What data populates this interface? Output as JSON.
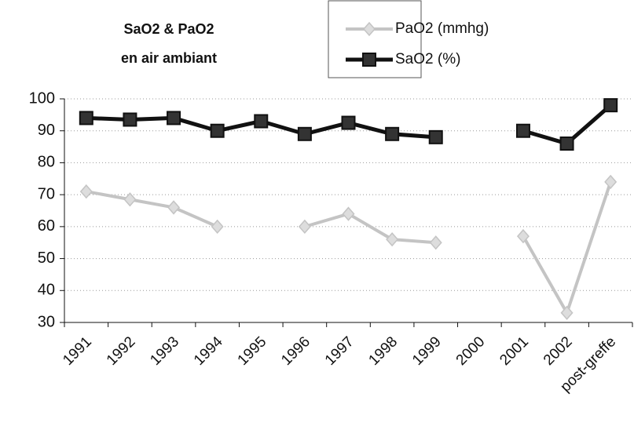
{
  "chart_data": {
    "type": "line",
    "title": "SaO2 & PaO2",
    "subtitle": "en air ambiant",
    "categories": [
      "1991",
      "1992",
      "1993",
      "1994",
      "1995",
      "1996",
      "1997",
      "1998",
      "1999",
      "2000",
      "2001",
      "2002",
      "post-greffe"
    ],
    "series": [
      {
        "name": "PaO2 (mmhg)",
        "color": "#c4c4c4",
        "marker": "diamond",
        "values": [
          71,
          68.5,
          66,
          60,
          null,
          60,
          64,
          56,
          55,
          null,
          57,
          33,
          74
        ]
      },
      {
        "name": "SaO2 (%)",
        "color": "#111111",
        "marker": "square",
        "values": [
          94,
          93.5,
          94,
          90,
          93,
          89,
          92.5,
          89,
          88,
          null,
          90,
          86,
          98
        ]
      }
    ],
    "ylim": [
      30,
      100
    ],
    "yticks": [
      30,
      40,
      50,
      60,
      70,
      80,
      90,
      100
    ],
    "grid": true,
    "legend": "top-right"
  }
}
